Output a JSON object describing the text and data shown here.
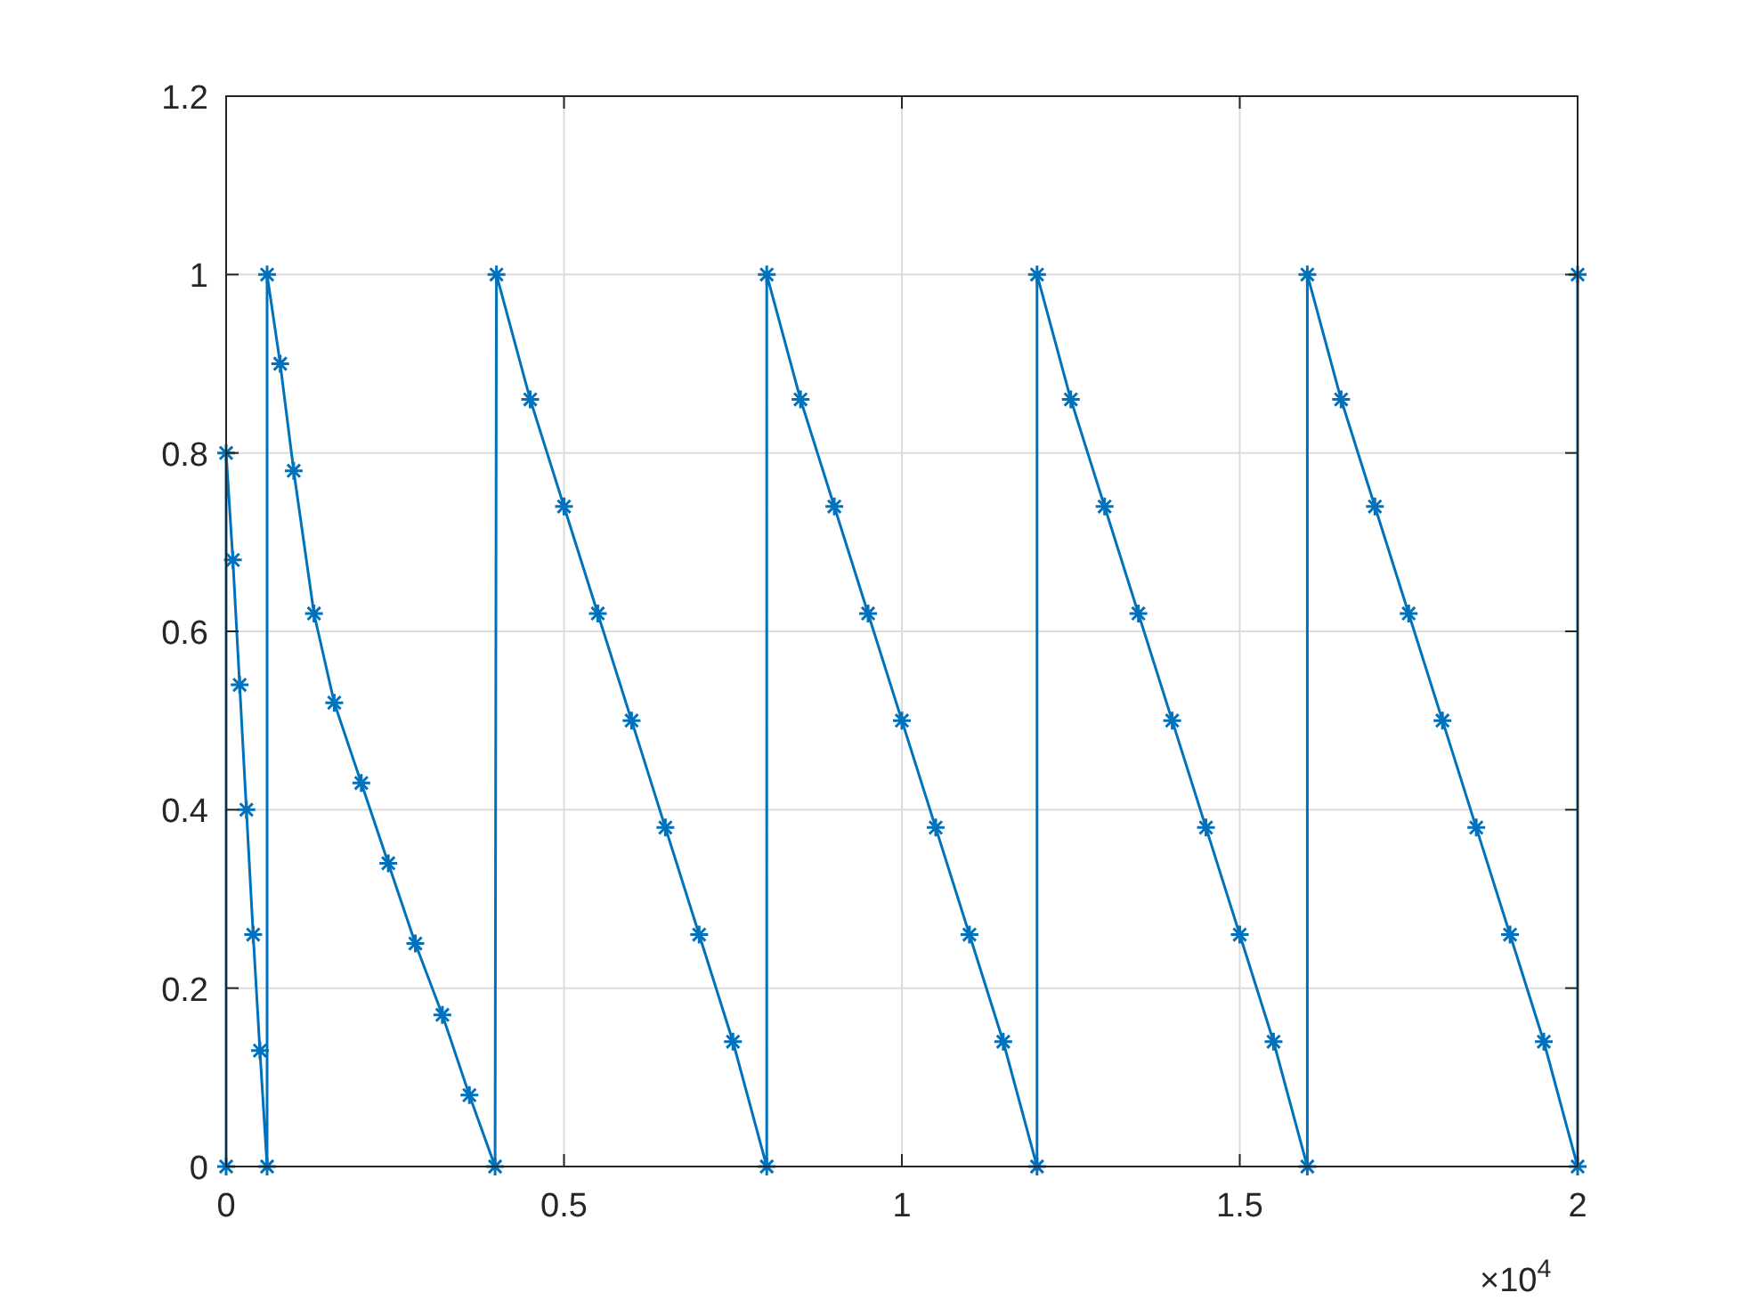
{
  "chart_data": {
    "type": "line",
    "marker": "cross",
    "line_style": "solid",
    "grid": true,
    "xlim": [
      0,
      2
    ],
    "ylim": [
      0,
      1.2
    ],
    "xticks": [
      0,
      0.5,
      1,
      1.5,
      2
    ],
    "yticks": [
      0,
      0.2,
      0.4,
      0.6,
      0.8,
      1,
      1.2
    ],
    "annotations": [
      "×10$^{4}$"
    ],
    "series": [
      {
        "color": "#0072bd",
        "x": [
          0,
          0,
          0.01,
          0.02,
          0.03,
          0.04,
          0.05,
          0.0606,
          0.0606,
          0.08,
          0.1,
          0.13,
          0.16,
          0.2,
          0.24,
          0.28,
          0.32,
          0.36,
          0.398,
          0.4,
          0.45,
          0.5,
          0.55,
          0.6,
          0.65,
          0.7,
          0.75,
          0.8,
          0.8,
          0.85,
          0.9,
          0.95,
          1,
          1.05,
          1.1,
          1.15,
          1.2,
          1.2,
          1.25,
          1.3,
          1.35,
          1.4,
          1.45,
          1.5,
          1.55,
          1.6,
          1.6,
          1.65,
          1.7,
          1.75,
          1.8,
          1.85,
          1.9,
          1.95,
          2,
          2
        ],
        "values": [
          0,
          0.8,
          0.68,
          0.54,
          0.4,
          0.26,
          0.13,
          0,
          1,
          0.9,
          0.78,
          0.62,
          0.52,
          0.43,
          0.34,
          0.25,
          0.17,
          0.08,
          0,
          1,
          0.86,
          0.74,
          0.62,
          0.5,
          0.38,
          0.26,
          0.14,
          0,
          1,
          0.86,
          0.74,
          0.62,
          0.5,
          0.38,
          0.26,
          0.14,
          0,
          1,
          0.86,
          0.74,
          0.62,
          0.5,
          0.38,
          0.26,
          0.14,
          0,
          1,
          0.86,
          0.74,
          0.62,
          0.5,
          0.38,
          0.26,
          0.14,
          0,
          1
        ]
      }
    ]
  }
}
